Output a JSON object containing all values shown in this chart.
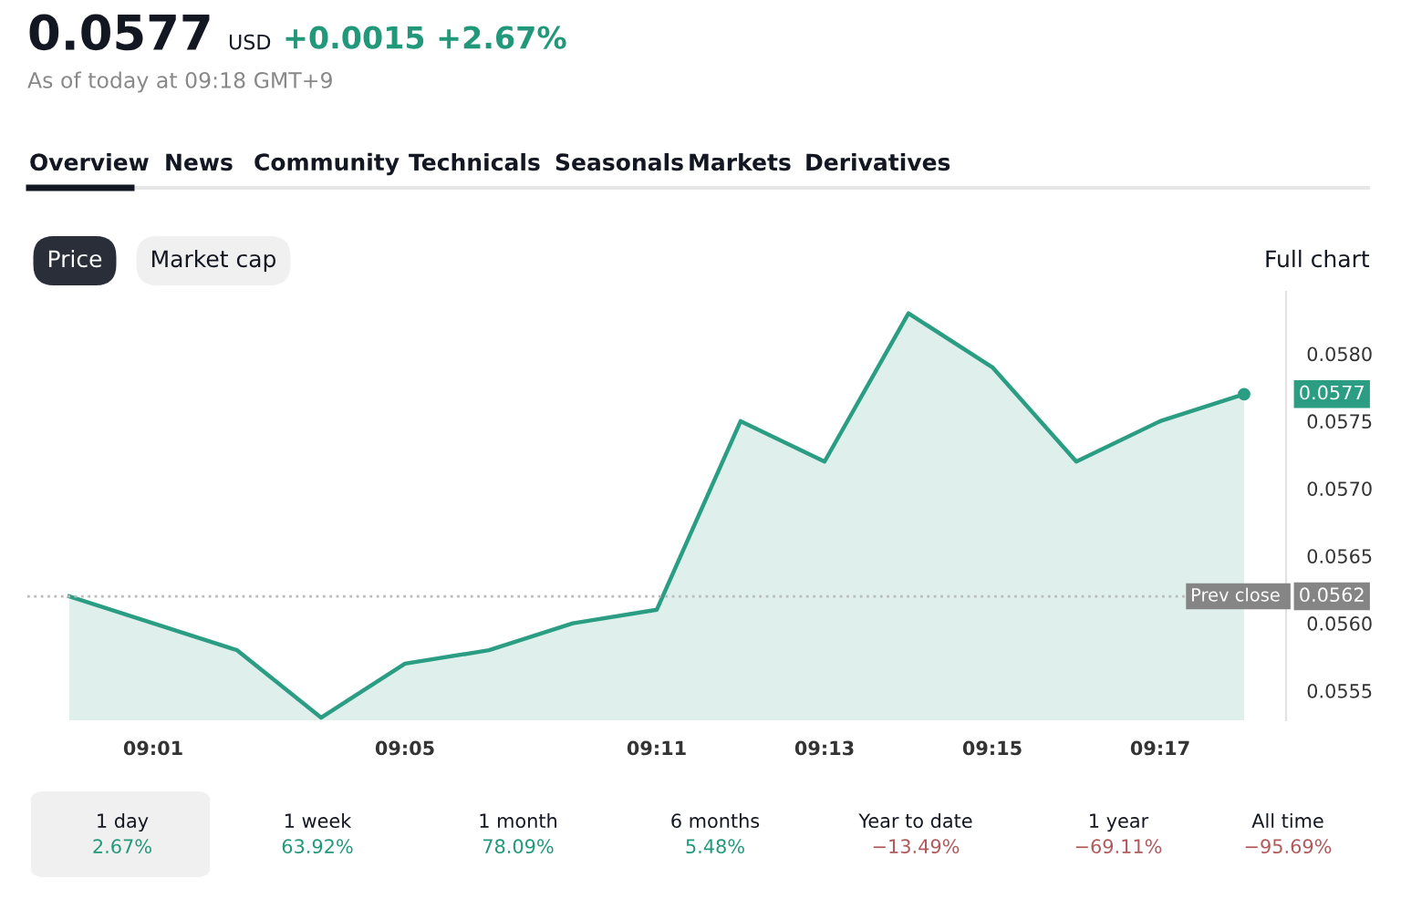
{
  "chart_data": {
    "type": "area",
    "title": "0.0577",
    "subtitle": "As of today at 09:18 GMT+9",
    "categories": [
      null,
      "09:01",
      null,
      null,
      "09:05",
      null,
      null,
      "09:11",
      null,
      "09:13",
      null,
      "09:15",
      null,
      "09:17",
      null
    ],
    "series": [
      {
        "color": "#2a9d82",
        "values": [
          0.0562,
          null,
          0.0558,
          0.0553,
          0.0557,
          0.0558,
          0.056,
          0.0561,
          0.0575,
          0.0572,
          0.0583,
          0.0579,
          0.0572,
          0.0575,
          0.0577
        ]
      }
    ],
    "yticks": [
      {
        "value": 0.0555,
        "label": "0.0555"
      },
      {
        "value": 0.056,
        "label": "0.0560"
      },
      {
        "value": 0.0565,
        "label": "0.0565"
      },
      {
        "value": 0.057,
        "label": "0.0570"
      },
      {
        "value": 0.0575,
        "label": "0.0575"
      },
      {
        "value": 0.058,
        "label": "0.0580"
      }
    ],
    "ref_lines": [
      {
        "axis": "y",
        "value": 0.0562,
        "label": "Prev close",
        "line_style": "dotted",
        "color": "#bbbbbb"
      }
    ],
    "ylim": [
      0.05528,
      0.05846
    ],
    "grid": false,
    "annotations": [
      "USD",
      "+0.0015 +2.67%",
      "Overview",
      "News",
      "Community",
      "Technicals",
      "Seasonals",
      "Markets",
      "Derivatives",
      "Price",
      "Market cap",
      "Full chart",
      "1 day",
      "2.67%",
      "1 week",
      "63.92%",
      "1 month",
      "78.09%",
      "6 months",
      "5.48%",
      "Year to date",
      "−13.49%",
      "1 year",
      "−69.11%",
      "All time",
      "−95.69%",
      "0.0577",
      "0.0562"
    ]
  }
}
